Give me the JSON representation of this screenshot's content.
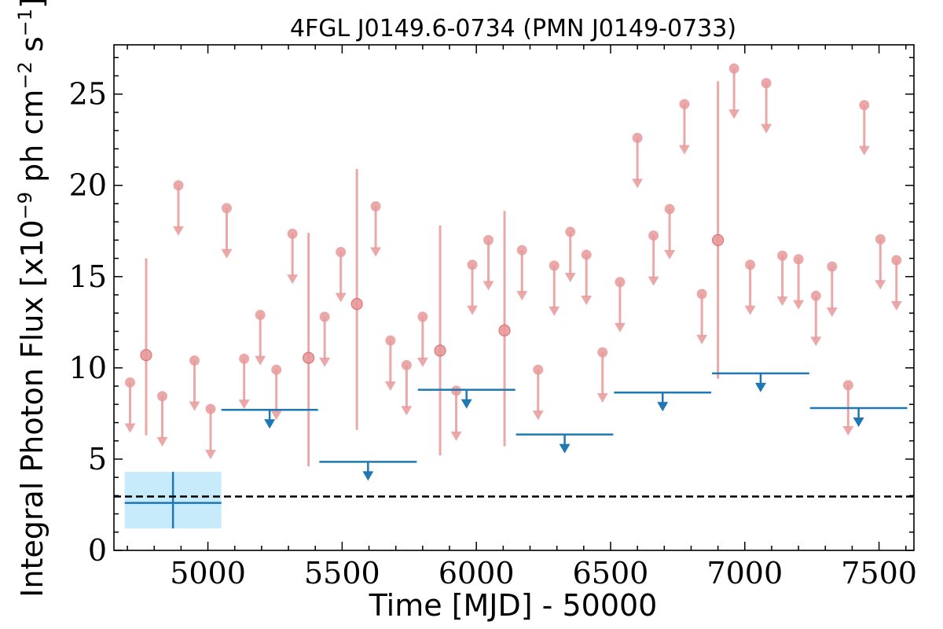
{
  "chart_data": {
    "type": "scatter",
    "title": "4FGL J0149.6-0734 (PMN J0149-0733)",
    "xlabel": "Time [MJD] - 50000",
    "ylabel": "Integral Photon Flux [x10",
    "ylabel_exp1": "−9",
    "ylabel_mid": " ph cm",
    "ylabel_exp2": "−2",
    "ylabel_mid2": " s",
    "ylabel_exp3": "−1",
    "ylabel_end": "]",
    "xlim": [
      4650,
      7630
    ],
    "ylim": [
      0,
      27.7
    ],
    "xticks": [
      "5000",
      "5500",
      "6000",
      "6500",
      "7000",
      "7500"
    ],
    "yticks": [
      "0",
      "5",
      "10",
      "15",
      "20",
      "25"
    ],
    "colors": {
      "fine_bins": "#e8999a",
      "yearly_bins": "#1f77b4",
      "overall_fill": "#c7ebfb",
      "overall_line": "#1f77b4",
      "reference": "#000000"
    },
    "overall": {
      "x": 4870,
      "x_range": [
        4690,
        5050
      ],
      "y": 2.6,
      "y_range": [
        1.2,
        4.3
      ]
    },
    "reference_line": 2.95,
    "yearly_upper_limits": [
      {
        "x_range": [
          5050,
          5410
        ],
        "y": 7.7
      },
      {
        "x_range": [
          5415,
          5778
        ],
        "y": 4.85
      },
      {
        "x_range": [
          5782,
          6145
        ],
        "y": 8.8
      },
      {
        "x_range": [
          6148,
          6510
        ],
        "y": 6.35
      },
      {
        "x_range": [
          6513,
          6875
        ],
        "y": 8.65
      },
      {
        "x_range": [
          6878,
          7240
        ],
        "y": 9.7
      },
      {
        "x_range": [
          7243,
          7605
        ],
        "y": 7.8
      }
    ],
    "fine_upper_limits": [
      [
        4710,
        9.2
      ],
      [
        4830,
        8.45
      ],
      [
        4890,
        20.0
      ],
      [
        4950,
        10.4
      ],
      [
        5010,
        7.75
      ],
      [
        5070,
        18.75
      ],
      [
        5135,
        10.5
      ],
      [
        5195,
        12.9
      ],
      [
        5255,
        9.9
      ],
      [
        5315,
        17.35
      ],
      [
        5435,
        12.8
      ],
      [
        5495,
        16.35
      ],
      [
        5625,
        18.85
      ],
      [
        5680,
        11.5
      ],
      [
        5740,
        10.15
      ],
      [
        5800,
        12.8
      ],
      [
        5925,
        8.75
      ],
      [
        5985,
        15.65
      ],
      [
        6045,
        17.0
      ],
      [
        6170,
        16.45
      ],
      [
        6230,
        9.9
      ],
      [
        6290,
        15.6
      ],
      [
        6350,
        17.45
      ],
      [
        6410,
        16.2
      ],
      [
        6470,
        10.85
      ],
      [
        6535,
        14.7
      ],
      [
        6600,
        22.6
      ],
      [
        6660,
        17.25
      ],
      [
        6720,
        18.7
      ],
      [
        6775,
        24.45
      ],
      [
        6840,
        14.05
      ],
      [
        6960,
        26.4
      ],
      [
        7020,
        15.65
      ],
      [
        7080,
        25.6
      ],
      [
        7140,
        16.15
      ],
      [
        7200,
        15.95
      ],
      [
        7265,
        13.95
      ],
      [
        7325,
        15.55
      ],
      [
        7385,
        9.05
      ],
      [
        7445,
        24.4
      ],
      [
        7505,
        17.05
      ],
      [
        7565,
        15.9
      ]
    ],
    "fine_detections": [
      {
        "x": 4770,
        "y": 10.7,
        "err": [
          6.3,
          16.0
        ]
      },
      {
        "x": 5375,
        "y": 10.55,
        "err": [
          4.6,
          17.4
        ]
      },
      {
        "x": 5555,
        "y": 13.5,
        "err": [
          6.6,
          20.9
        ]
      },
      {
        "x": 5865,
        "y": 10.95,
        "err": [
          5.2,
          17.8
        ]
      },
      {
        "x": 6105,
        "y": 12.05,
        "err": [
          5.7,
          18.6
        ]
      },
      {
        "x": 6900,
        "y": 17.0,
        "err": [
          9.4,
          25.7
        ]
      }
    ]
  }
}
